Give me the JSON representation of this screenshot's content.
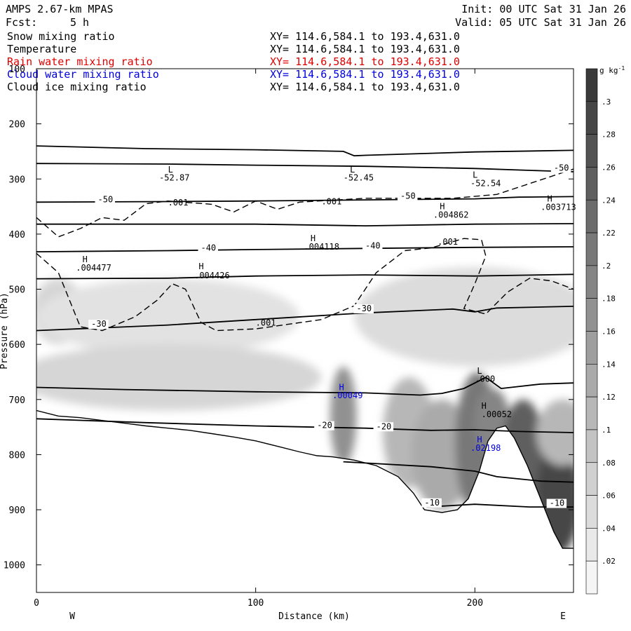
{
  "header": {
    "model": "AMPS 2.67-km MPAS",
    "fcst_label": "Fcst:",
    "fcst_value": "5 h",
    "init": "Init: 00 UTC Sat 31 Jan 26",
    "valid": "Valid: 05 UTC Sat 31 Jan 26"
  },
  "legend": [
    {
      "name": "Snow mixing ratio",
      "xy": "XY= 114.6,584.1 to 193.4,631.0",
      "color": "#000000"
    },
    {
      "name": "Temperature",
      "xy": "XY= 114.6,584.1 to 193.4,631.0",
      "color": "#000000"
    },
    {
      "name": "Rain water mixing ratio",
      "xy": "XY= 114.6,584.1 to 193.4,631.0",
      "color": "#e00000"
    },
    {
      "name": "Cloud water mixing ratio",
      "xy": "XY= 114.6,584.1 to 193.4,631.0",
      "color": "#0000e0"
    },
    {
      "name": "Cloud ice mixing ratio",
      "xy": "XY= 114.6,584.1 to 193.4,631.0",
      "color": "#000000"
    }
  ],
  "chart_data": {
    "type": "heatmap",
    "xlabel": "Distance (km)",
    "ylabel": "Pressure (hPa)",
    "xlim": [
      0,
      245
    ],
    "ylim": [
      1050,
      100
    ],
    "x_ticks": [
      0,
      100,
      200
    ],
    "y_ticks": [
      100,
      200,
      300,
      400,
      500,
      600,
      700,
      800,
      900,
      1000
    ],
    "x_end_labels": {
      "left": "W",
      "right": "E"
    },
    "colorbar": {
      "units": "g kg",
      "units_exp": "-1",
      "labels": [
        "0.02",
        "0.04",
        "0.06",
        "0.08",
        "0.1",
        "0.12",
        "0.14",
        "0.16",
        "0.18",
        "0.2",
        "0.22",
        "0.24",
        "0.26",
        "0.28",
        "0.3"
      ],
      "display_labels": [
        ".02",
        ".04",
        ".06",
        ".08",
        ".1",
        ".12",
        ".14",
        ".16",
        ".18",
        ".2",
        ".22",
        ".24",
        ".26",
        ".28",
        ".3"
      ],
      "levels": 16
    },
    "terrain": [
      [
        0,
        720
      ],
      [
        10,
        730
      ],
      [
        20,
        733
      ],
      [
        30,
        738
      ],
      [
        40,
        743
      ],
      [
        50,
        748
      ],
      [
        60,
        752
      ],
      [
        70,
        756
      ],
      [
        80,
        762
      ],
      [
        90,
        768
      ],
      [
        100,
        775
      ],
      [
        110,
        785
      ],
      [
        120,
        795
      ],
      [
        128,
        802
      ],
      [
        135,
        804
      ],
      [
        145,
        810
      ],
      [
        155,
        820
      ],
      [
        165,
        840
      ],
      [
        172,
        870
      ],
      [
        177,
        900
      ],
      [
        185,
        905
      ],
      [
        192,
        900
      ],
      [
        197,
        880
      ],
      [
        202,
        830
      ],
      [
        206,
        775
      ],
      [
        210,
        752
      ],
      [
        214,
        748
      ],
      [
        218,
        770
      ],
      [
        224,
        820
      ],
      [
        230,
        880
      ],
      [
        236,
        940
      ],
      [
        240,
        970
      ],
      [
        245,
        970
      ]
    ],
    "temperature_contours": [
      {
        "label": "",
        "points": [
          [
            0,
            240
          ],
          [
            50,
            245
          ],
          [
            100,
            247
          ],
          [
            140,
            250
          ],
          [
            145,
            258
          ],
          [
            150,
            257
          ],
          [
            200,
            251
          ],
          [
            245,
            248
          ]
        ]
      },
      {
        "label": "-50",
        "points": [
          [
            0,
            272
          ],
          [
            60,
            273
          ],
          [
            100,
            275
          ],
          [
            150,
            277
          ],
          [
            200,
            281
          ],
          [
            230,
            285
          ],
          [
            245,
            287
          ]
        ]
      },
      {
        "label": "-50",
        "points": [
          [
            0,
            342
          ],
          [
            60,
            341
          ],
          [
            100,
            340
          ],
          [
            150,
            338
          ],
          [
            200,
            336
          ],
          [
            220,
            333
          ],
          [
            245,
            332
          ]
        ]
      },
      {
        "label": "",
        "points": [
          [
            0,
            382
          ],
          [
            60,
            382
          ],
          [
            100,
            382
          ],
          [
            150,
            385
          ],
          [
            200,
            382
          ],
          [
            245,
            381
          ]
        ]
      },
      {
        "label": "-40",
        "points": [
          [
            0,
            432
          ],
          [
            60,
            430
          ],
          [
            100,
            428
          ],
          [
            150,
            426
          ],
          [
            200,
            424
          ],
          [
            245,
            423
          ]
        ]
      },
      {
        "label": "",
        "points": [
          [
            0,
            481
          ],
          [
            60,
            480
          ],
          [
            100,
            476
          ],
          [
            150,
            474
          ],
          [
            200,
            476
          ],
          [
            245,
            473
          ]
        ]
      },
      {
        "label": "-30",
        "points": [
          [
            0,
            575
          ],
          [
            60,
            565
          ],
          [
            100,
            555
          ],
          [
            150,
            543
          ],
          [
            190,
            536
          ],
          [
            200,
            541
          ],
          [
            210,
            534
          ],
          [
            245,
            531
          ]
        ]
      },
      {
        "label": "",
        "points": [
          [
            0,
            678
          ],
          [
            40,
            682
          ],
          [
            100,
            686
          ],
          [
            150,
            688
          ],
          [
            175,
            692
          ],
          [
            185,
            689
          ],
          [
            195,
            680
          ],
          [
            205,
            660
          ],
          [
            212,
            680
          ],
          [
            230,
            672
          ],
          [
            245,
            670
          ]
        ]
      },
      {
        "label": "-20",
        "points": [
          [
            0,
            735
          ],
          [
            50,
            742
          ],
          [
            100,
            748
          ],
          [
            150,
            752
          ],
          [
            180,
            756
          ],
          [
            200,
            755
          ],
          [
            220,
            758
          ],
          [
            245,
            760
          ]
        ]
      },
      {
        "label": "",
        "points": [
          [
            140,
            813
          ],
          [
            180,
            822
          ],
          [
            200,
            830
          ],
          [
            210,
            840
          ],
          [
            230,
            848
          ],
          [
            245,
            850
          ]
        ]
      },
      {
        "label": "-10",
        "points": [
          [
            178,
            895
          ],
          [
            200,
            890
          ],
          [
            225,
            895
          ],
          [
            245,
            895
          ]
        ]
      }
    ],
    "cloud_ice_dashed": [
      [
        0,
        370
      ],
      [
        10,
        405
      ],
      [
        20,
        390
      ],
      [
        30,
        370
      ],
      [
        40,
        375
      ],
      [
        50,
        345
      ],
      [
        60,
        340
      ],
      [
        80,
        346
      ],
      [
        90,
        360
      ],
      [
        100,
        340
      ],
      [
        110,
        355
      ],
      [
        120,
        342
      ],
      [
        150,
        335
      ],
      [
        175,
        335
      ],
      [
        190,
        335
      ],
      [
        210,
        328
      ],
      [
        245,
        282
      ]
    ],
    "cloud_ice_dashed_2": [
      [
        0,
        435
      ],
      [
        10,
        470
      ],
      [
        20,
        568
      ],
      [
        30,
        575
      ],
      [
        45,
        550
      ],
      [
        55,
        520
      ],
      [
        62,
        490
      ],
      [
        68,
        500
      ],
      [
        75,
        560
      ],
      [
        82,
        575
      ],
      [
        100,
        572
      ],
      [
        130,
        555
      ],
      [
        145,
        530
      ],
      [
        155,
        470
      ],
      [
        168,
        430
      ],
      [
        180,
        425
      ],
      [
        195,
        408
      ],
      [
        203,
        410
      ],
      [
        205,
        440
      ],
      [
        200,
        490
      ],
      [
        195,
        535
      ],
      [
        205,
        545
      ],
      [
        215,
        505
      ],
      [
        225,
        480
      ],
      [
        235,
        485
      ],
      [
        245,
        500
      ]
    ],
    "annotations": [
      {
        "text": "L",
        "x": 60,
        "y": 288,
        "color": "#000000"
      },
      {
        "text": "-52.87",
        "x": 56,
        "y": 303,
        "color": "#000000"
      },
      {
        "text": "L",
        "x": 143,
        "y": 288,
        "color": "#000000"
      },
      {
        "text": "-52.45",
        "x": 140,
        "y": 303,
        "color": "#000000"
      },
      {
        "text": "L",
        "x": 199,
        "y": 298,
        "color": "#000000"
      },
      {
        "text": "-52.54",
        "x": 198,
        "y": 313,
        "color": "#000000"
      },
      {
        "text": ".001",
        "x": 60,
        "y": 348,
        "color": "#000000"
      },
      {
        "text": ".001",
        "x": 130,
        "y": 346,
        "color": "#000000"
      },
      {
        "text": ".001",
        "x": 183,
        "y": 419,
        "color": "#000000"
      },
      {
        "text": ".001",
        "x": 100,
        "y": 566,
        "color": "#000000"
      },
      {
        "text": "H",
        "x": 184,
        "y": 355,
        "color": "#000000"
      },
      {
        "text": ".004862",
        "x": 181,
        "y": 370,
        "color": "#000000"
      },
      {
        "text": "H",
        "x": 233,
        "y": 341,
        "color": "#000000"
      },
      {
        "text": ".003713",
        "x": 230,
        "y": 356,
        "color": "#000000"
      },
      {
        "text": "H",
        "x": 125,
        "y": 413,
        "color": "#000000"
      },
      {
        "text": ".004118",
        "x": 122,
        "y": 428,
        "color": "#000000"
      },
      {
        "text": "H",
        "x": 21,
        "y": 451,
        "color": "#000000"
      },
      {
        "text": ".004477",
        "x": 18,
        "y": 466,
        "color": "#000000"
      },
      {
        "text": "H",
        "x": 74,
        "y": 464,
        "color": "#000000"
      },
      {
        "text": ".004426",
        "x": 72,
        "y": 480,
        "color": "#000000"
      },
      {
        "text": "L",
        "x": 201,
        "y": 653,
        "color": "#000000"
      },
      {
        "text": ".000",
        "x": 200,
        "y": 668,
        "color": "#000000"
      },
      {
        "text": "H",
        "x": 203,
        "y": 717,
        "color": "#000000"
      },
      {
        "text": ".00052",
        "x": 203,
        "y": 732,
        "color": "#000000"
      },
      {
        "text": "H",
        "x": 138,
        "y": 683,
        "color": "#0000e0"
      },
      {
        "text": ".00049",
        "x": 135,
        "y": 698,
        "color": "#0000e0"
      },
      {
        "text": "H",
        "x": 201,
        "y": 778,
        "color": "#0000e0"
      },
      {
        "text": ".02198",
        "x": 198,
        "y": 793,
        "color": "#0000e0"
      }
    ],
    "contour_labels": [
      {
        "text": "-50",
        "x": 236,
        "y": 285
      },
      {
        "text": "-50",
        "x": 28,
        "y": 342
      },
      {
        "text": "-50",
        "x": 166,
        "y": 336
      },
      {
        "text": "-40",
        "x": 75,
        "y": 430
      },
      {
        "text": "-40",
        "x": 150,
        "y": 426
      },
      {
        "text": "-30",
        "x": 146,
        "y": 540
      },
      {
        "text": "-30",
        "x": 25,
        "y": 568
      },
      {
        "text": "-20",
        "x": 128,
        "y": 752
      },
      {
        "text": "-20",
        "x": 155,
        "y": 754
      },
      {
        "text": "-10",
        "x": 177,
        "y": 892
      },
      {
        "text": "-10",
        "x": 234,
        "y": 893
      }
    ],
    "shading": [
      {
        "x": 10,
        "p": 540,
        "rx": 12,
        "rp": 60,
        "v": 0.05
      },
      {
        "x": 60,
        "p": 550,
        "rx": 60,
        "rp": 70,
        "v": 0.03
      },
      {
        "x": 200,
        "p": 550,
        "rx": 55,
        "rp": 90,
        "v": 0.04
      },
      {
        "x": 60,
        "p": 660,
        "rx": 70,
        "rp": 60,
        "v": 0.05
      },
      {
        "x": 140,
        "p": 730,
        "rx": 6,
        "rp": 90,
        "v": 0.16
      },
      {
        "x": 170,
        "p": 760,
        "rx": 12,
        "rp": 100,
        "v": 0.1
      },
      {
        "x": 185,
        "p": 800,
        "rx": 14,
        "rp": 100,
        "v": 0.12
      },
      {
        "x": 201,
        "p": 780,
        "rx": 10,
        "rp": 130,
        "v": 0.2
      },
      {
        "x": 208,
        "p": 740,
        "rx": 8,
        "rp": 60,
        "v": 0.18
      },
      {
        "x": 222,
        "p": 800,
        "rx": 10,
        "rp": 100,
        "v": 0.24
      },
      {
        "x": 238,
        "p": 880,
        "rx": 10,
        "rp": 100,
        "v": 0.28
      },
      {
        "x": 240,
        "p": 760,
        "rx": 12,
        "rp": 60,
        "v": 0.1
      }
    ]
  }
}
